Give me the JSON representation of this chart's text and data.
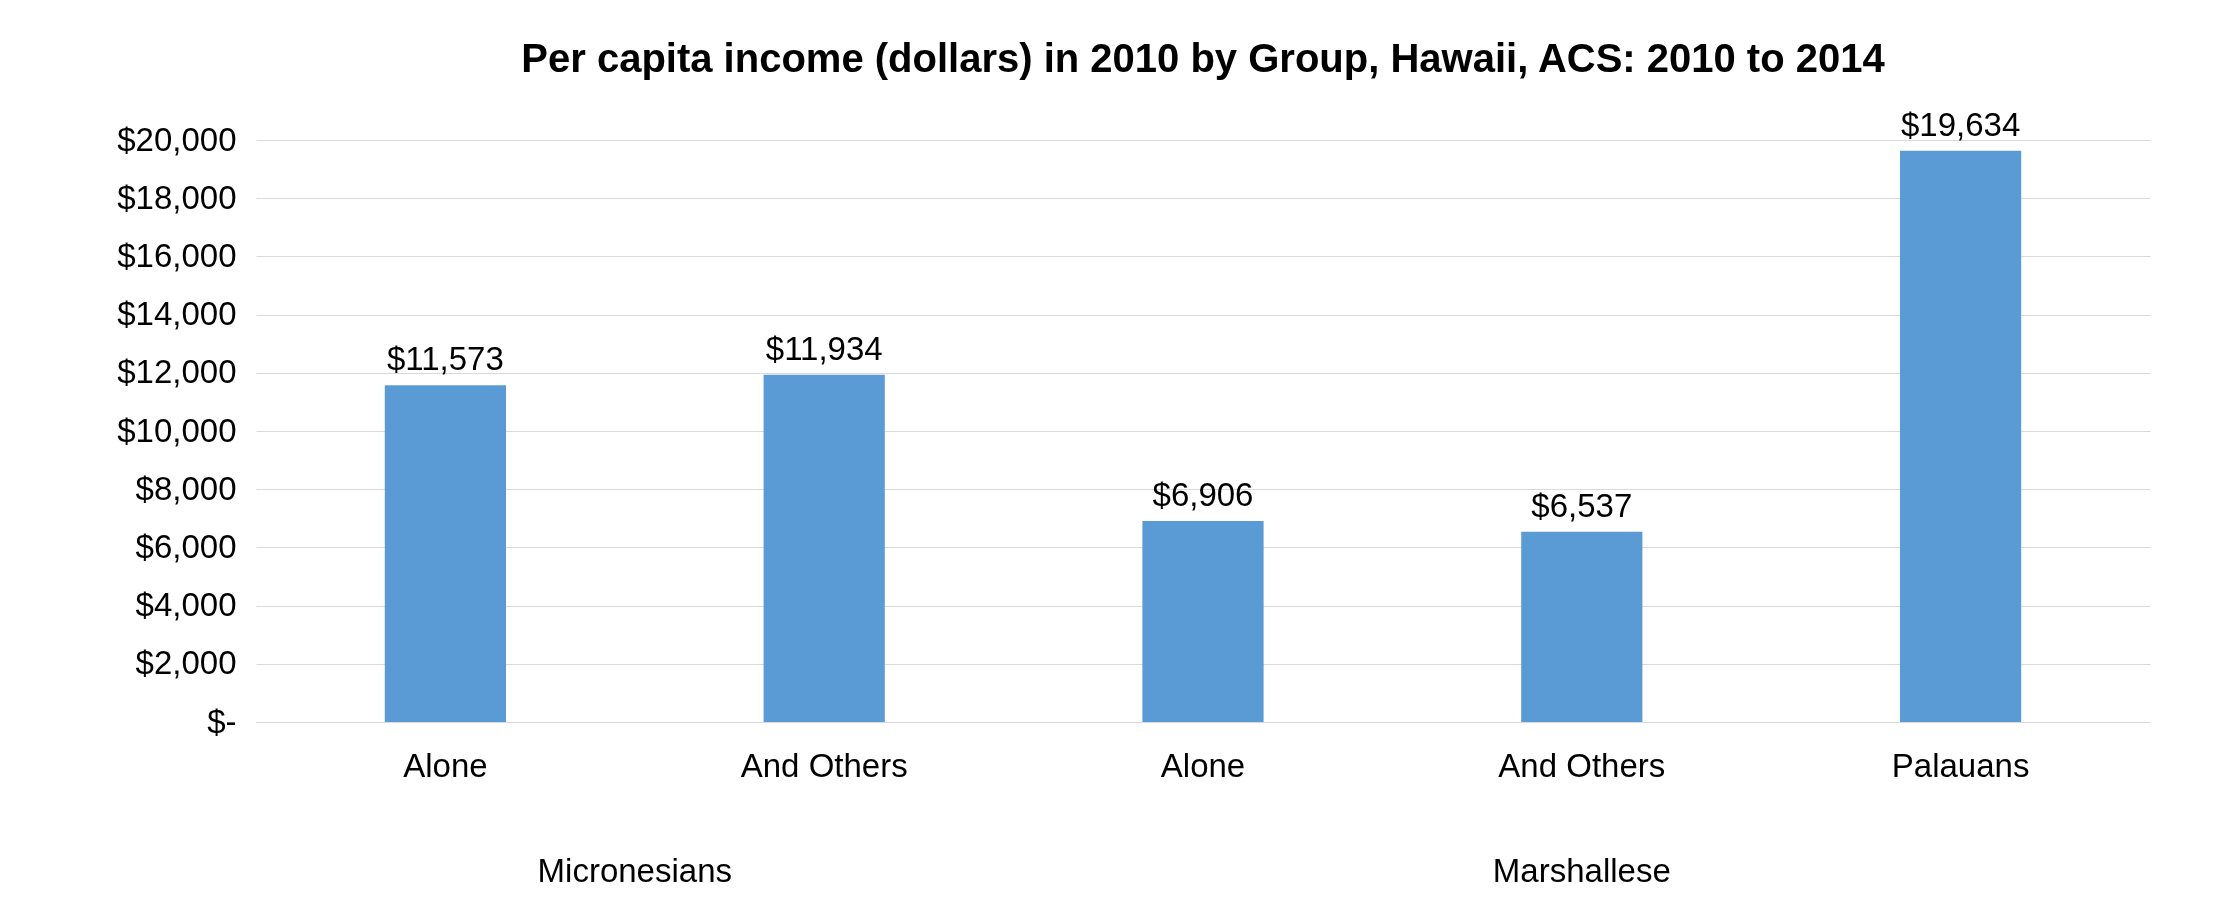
{
  "chart_data": {
    "type": "bar",
    "title": "Per capita income (dollars) in 2010 by Group, Hawaii, ACS: 2010 to 2014",
    "categories": [
      "Alone",
      "And Others",
      "Alone",
      "And Others",
      "Palauans"
    ],
    "values": [
      11573,
      11934,
      6906,
      6537,
      19634
    ],
    "color": "#5b9bd5",
    "ylim": [
      0,
      20000
    ],
    "yticks": [
      {
        "value": 0,
        "label": "$-"
      },
      {
        "value": 2000,
        "label": "$2,000"
      },
      {
        "value": 4000,
        "label": "$4,000"
      },
      {
        "value": 6000,
        "label": "$6,000"
      },
      {
        "value": 8000,
        "label": "$8,000"
      },
      {
        "value": 10000,
        "label": "$10,000"
      },
      {
        "value": 12000,
        "label": "$12,000"
      },
      {
        "value": 14000,
        "label": "$14,000"
      },
      {
        "value": 16000,
        "label": "$16,000"
      },
      {
        "value": 18000,
        "label": "$18,000"
      },
      {
        "value": 20000,
        "label": "$20,000"
      }
    ],
    "value_labels": [
      "$11,573",
      "$11,934",
      "$6,906",
      "$6,537",
      "$19,634"
    ],
    "annotations": [
      "Micronesians",
      "Marshallese"
    ],
    "grid": "y"
  }
}
